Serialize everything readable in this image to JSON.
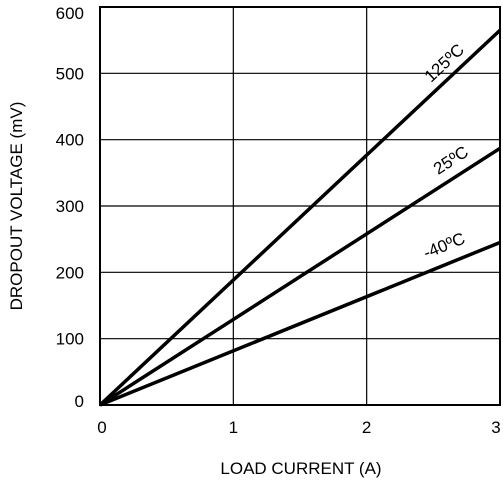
{
  "chart_data": {
    "type": "line",
    "title": "",
    "xlabel": "LOAD CURRENT (A)",
    "ylabel": "DROPOUT VOLTAGE (mV)",
    "xlim": [
      0,
      3
    ],
    "ylim": [
      0,
      600
    ],
    "x_ticks": [
      0,
      1,
      2,
      3
    ],
    "y_ticks": [
      0,
      100,
      200,
      300,
      400,
      500,
      600
    ],
    "grid": true,
    "series": [
      {
        "name": "125ºC",
        "x": [
          0,
          3
        ],
        "y": [
          0,
          565
        ]
      },
      {
        "name": "25ºC",
        "x": [
          0,
          3
        ],
        "y": [
          0,
          387
        ]
      },
      {
        "name": "-40ºC",
        "x": [
          0,
          3
        ],
        "y": [
          0,
          245
        ]
      }
    ]
  },
  "colors": {
    "line": "#000000",
    "grid": "#000000",
    "background": "#ffffff"
  }
}
